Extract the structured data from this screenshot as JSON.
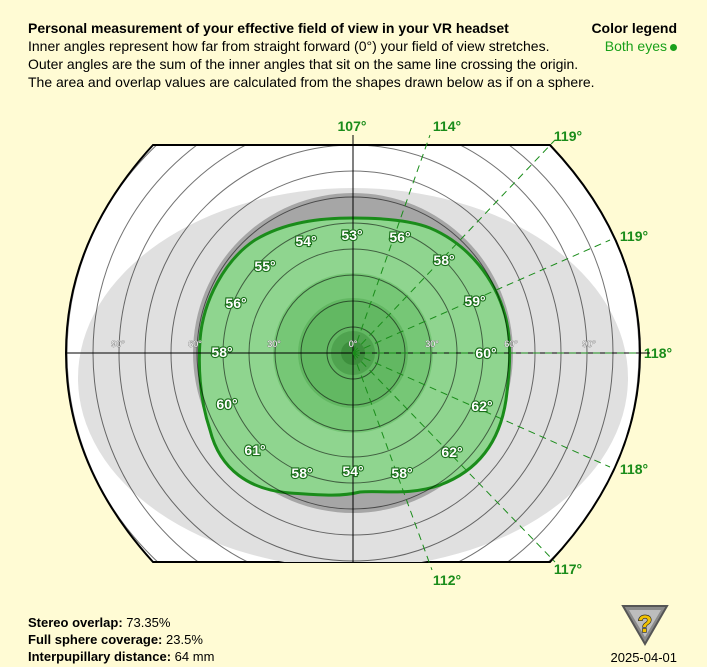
{
  "header": {
    "title": "Personal measurement of your effective field of view in your VR headset",
    "lines": [
      "Inner angles represent how far from straight forward (0°) your field of view stretches.",
      "Outer angles are the sum of the inner angles that sit on the same line crossing the origin.",
      "The area and overlap values are calculated from the shapes drawn below as if on a sphere."
    ]
  },
  "legend": {
    "title": "Color legend",
    "item": "Both eyes"
  },
  "ring_labels": [
    "90°",
    "60°",
    "30°",
    "0°",
    "30°",
    "60°",
    "90°"
  ],
  "inner_angles": [
    "53°",
    "56°",
    "58°",
    "59°",
    "60°",
    "62°",
    "62°",
    "58°",
    "54°",
    "58°",
    "61°",
    "60°",
    "58°",
    "56°",
    "55°",
    "54°"
  ],
  "outer_angles": [
    "107°",
    "114°",
    "119°",
    "119°",
    "118°",
    "118°",
    "117°",
    "112°"
  ],
  "stats": {
    "stereo_label": "Stereo overlap:",
    "stereo_value": "73.35%",
    "coverage_label": "Full sphere coverage:",
    "coverage_value": "23.5%",
    "ipd_label": "Interpupillary distance:",
    "ipd_value": "64 mm"
  },
  "date": "2025-04-01",
  "colors": {
    "background": "#fffbd4",
    "green": "#1a8c1a",
    "fill_green": "#8fd58f",
    "ring_gray": "#e0e0e0",
    "dark_gray": "#a8a8a8"
  },
  "logo_icon": "question-mark-shield-icon"
}
